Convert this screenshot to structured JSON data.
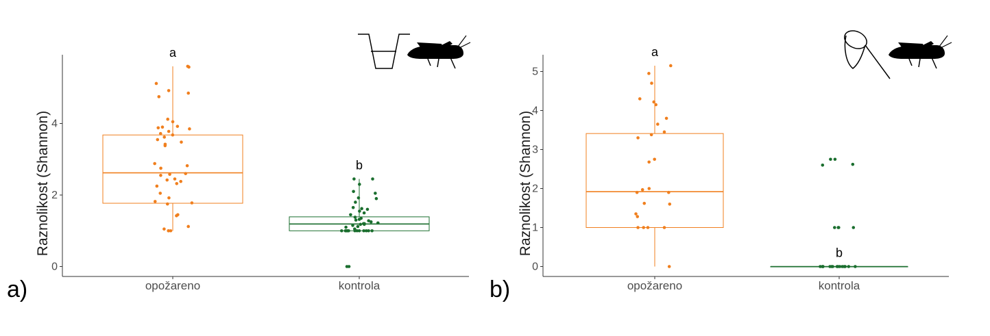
{
  "colors": {
    "burned": "#f07f1e",
    "control": "#1a6e2e",
    "axis": "#333333"
  },
  "icons": [
    "pitfall-trap-icon",
    "grasshopper-icon",
    "sweep-net-icon",
    "grasshopper-icon"
  ],
  "chart_data": [
    {
      "type": "box",
      "panel_label": "a)",
      "ylabel": "Raznolikost (Shannon)",
      "ylim": [
        -0.25,
        5.95
      ],
      "yticks": [
        0,
        2,
        4
      ],
      "categories": [
        "opožareno",
        "kontrola"
      ],
      "grid": false,
      "groups": [
        {
          "category": "opožareno",
          "color": "#f07f1e",
          "significance": "a",
          "box": {
            "whisker_low": 1.0,
            "q1": 1.77,
            "median": 2.62,
            "q3": 3.68,
            "whisker_high": 5.6
          },
          "points": [
            5.6,
            5.58,
            5.12,
            4.92,
            4.85,
            4.75,
            4.12,
            4.05,
            3.92,
            3.9,
            3.88,
            3.85,
            3.78,
            3.72,
            3.68,
            3.62,
            3.55,
            3.48,
            3.42,
            3.38,
            2.88,
            2.82,
            2.75,
            2.6,
            2.58,
            2.55,
            2.45,
            2.42,
            2.38,
            2.32,
            2.25,
            2.05,
            1.92,
            1.82,
            1.78,
            1.75,
            1.45,
            1.42,
            1.12,
            1.05,
            1.0,
            1.0,
            1.0
          ]
        },
        {
          "category": "kontrola",
          "color": "#1a6e2e",
          "significance": "b",
          "box": {
            "whisker_low": 1.0,
            "q1": 1.0,
            "median": 1.19,
            "q3": 1.39,
            "whisker_high": 2.45
          },
          "points": [
            2.45,
            2.45,
            2.3,
            2.1,
            2.05,
            1.92,
            1.9,
            1.8,
            1.65,
            1.62,
            1.6,
            1.55,
            1.5,
            1.45,
            1.38,
            1.35,
            1.32,
            1.3,
            1.28,
            1.25,
            1.22,
            1.2,
            1.2,
            1.18,
            1.18,
            1.15,
            1.12,
            1.1,
            1.05,
            1.0,
            1.0,
            1.0,
            1.0,
            1.0,
            1.0,
            1.0,
            1.0,
            1.0,
            1.0,
            1.0,
            1.0,
            1.0,
            0.0,
            0.0
          ]
        }
      ]
    },
    {
      "type": "box",
      "panel_label": "b)",
      "ylabel": "Raznolikost (Shannon)",
      "ylim": [
        -0.25,
        5.4
      ],
      "yticks": [
        0,
        1,
        2,
        3,
        4,
        5
      ],
      "categories": [
        "opožareno",
        "kontrola"
      ],
      "grid": false,
      "groups": [
        {
          "category": "opožareno",
          "color": "#f07f1e",
          "significance": "a",
          "box": {
            "whisker_low": 0.0,
            "q1": 1.0,
            "median": 1.92,
            "q3": 3.41,
            "whisker_high": 5.15
          },
          "points": [
            5.15,
            4.95,
            4.7,
            4.3,
            4.22,
            4.15,
            3.8,
            3.65,
            3.45,
            3.38,
            3.3,
            2.75,
            2.68,
            2.0,
            1.97,
            1.9,
            1.9,
            1.62,
            1.6,
            1.35,
            1.28,
            1.0,
            1.0,
            1.0,
            1.0,
            0.0
          ]
        },
        {
          "category": "kontrola",
          "color": "#1a6e2e",
          "significance": "b",
          "box": {
            "whisker_low": 0.0,
            "q1": 0.0,
            "median": 0.0,
            "q3": 0.0,
            "whisker_high": 0.0
          },
          "points": [
            2.75,
            2.75,
            2.62,
            2.6,
            1.0,
            1.0,
            1.0,
            1.0,
            0.0,
            0.0,
            0.0,
            0.0,
            0.0,
            0.0,
            0.0,
            0.0,
            0.0,
            0.0,
            0.0,
            0.0,
            0.0,
            0.0,
            0.0
          ]
        }
      ]
    }
  ]
}
